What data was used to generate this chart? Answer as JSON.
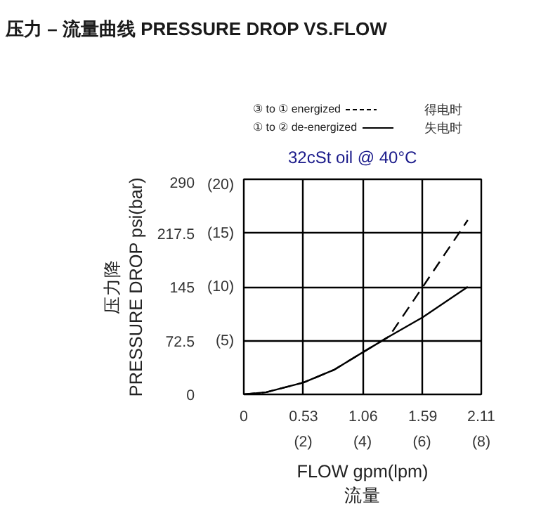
{
  "chart_data": {
    "type": "line",
    "title": "压力 – 流量曲线 PRESSURE DROP VS.FLOW",
    "subtitle": "32cSt oil @ 40°C",
    "xlabel": "FLOW gpm(lpm)\n流量",
    "ylabel": "压力降\nPRESSURE DROP psi(bar)",
    "annotations": [
      "得电时",
      "失电时"
    ],
    "series": [
      {
        "name": "③ to ① energized",
        "color": "#000000",
        "line_style": "dashed",
        "x": [
          0,
          0.2,
          0.53,
          0.8,
          1.06,
          1.29,
          1.59,
          1.99
        ],
        "values": [
          0,
          3,
          16,
          33,
          57,
          78,
          145,
          235
        ]
      },
      {
        "name": "① to ② de-energized",
        "color": "#000000",
        "line_style": "solid",
        "x": [
          0,
          0.2,
          0.53,
          0.8,
          1.06,
          1.29,
          1.59,
          1.99
        ],
        "values": [
          0,
          3,
          16,
          33,
          57,
          78,
          104,
          145
        ]
      }
    ],
    "xlim": [
      0,
      2.11
    ],
    "ylim": [
      0,
      290
    ],
    "xticks": [
      0,
      0.53,
      1.06,
      1.59,
      2.11
    ],
    "yticks": [
      0,
      72.5,
      145,
      217.5,
      290
    ],
    "x2lim": [
      0,
      8
    ],
    "x2ticks": [
      {
        "value": 2,
        "label": "(2)"
      },
      {
        "value": 4,
        "label": "(4)"
      },
      {
        "value": 6,
        "label": "(6)"
      },
      {
        "value": 8,
        "label": "(8)"
      }
    ],
    "y2lim": [
      0,
      20
    ],
    "y2ticks": [
      {
        "value": 5,
        "label": "(5)"
      },
      {
        "value": 10,
        "label": "(10)"
      },
      {
        "value": 15,
        "label": "(15)"
      },
      {
        "value": 20,
        "label": "(20)"
      }
    ],
    "grid": true,
    "legend": "top",
    "marker": "none"
  }
}
